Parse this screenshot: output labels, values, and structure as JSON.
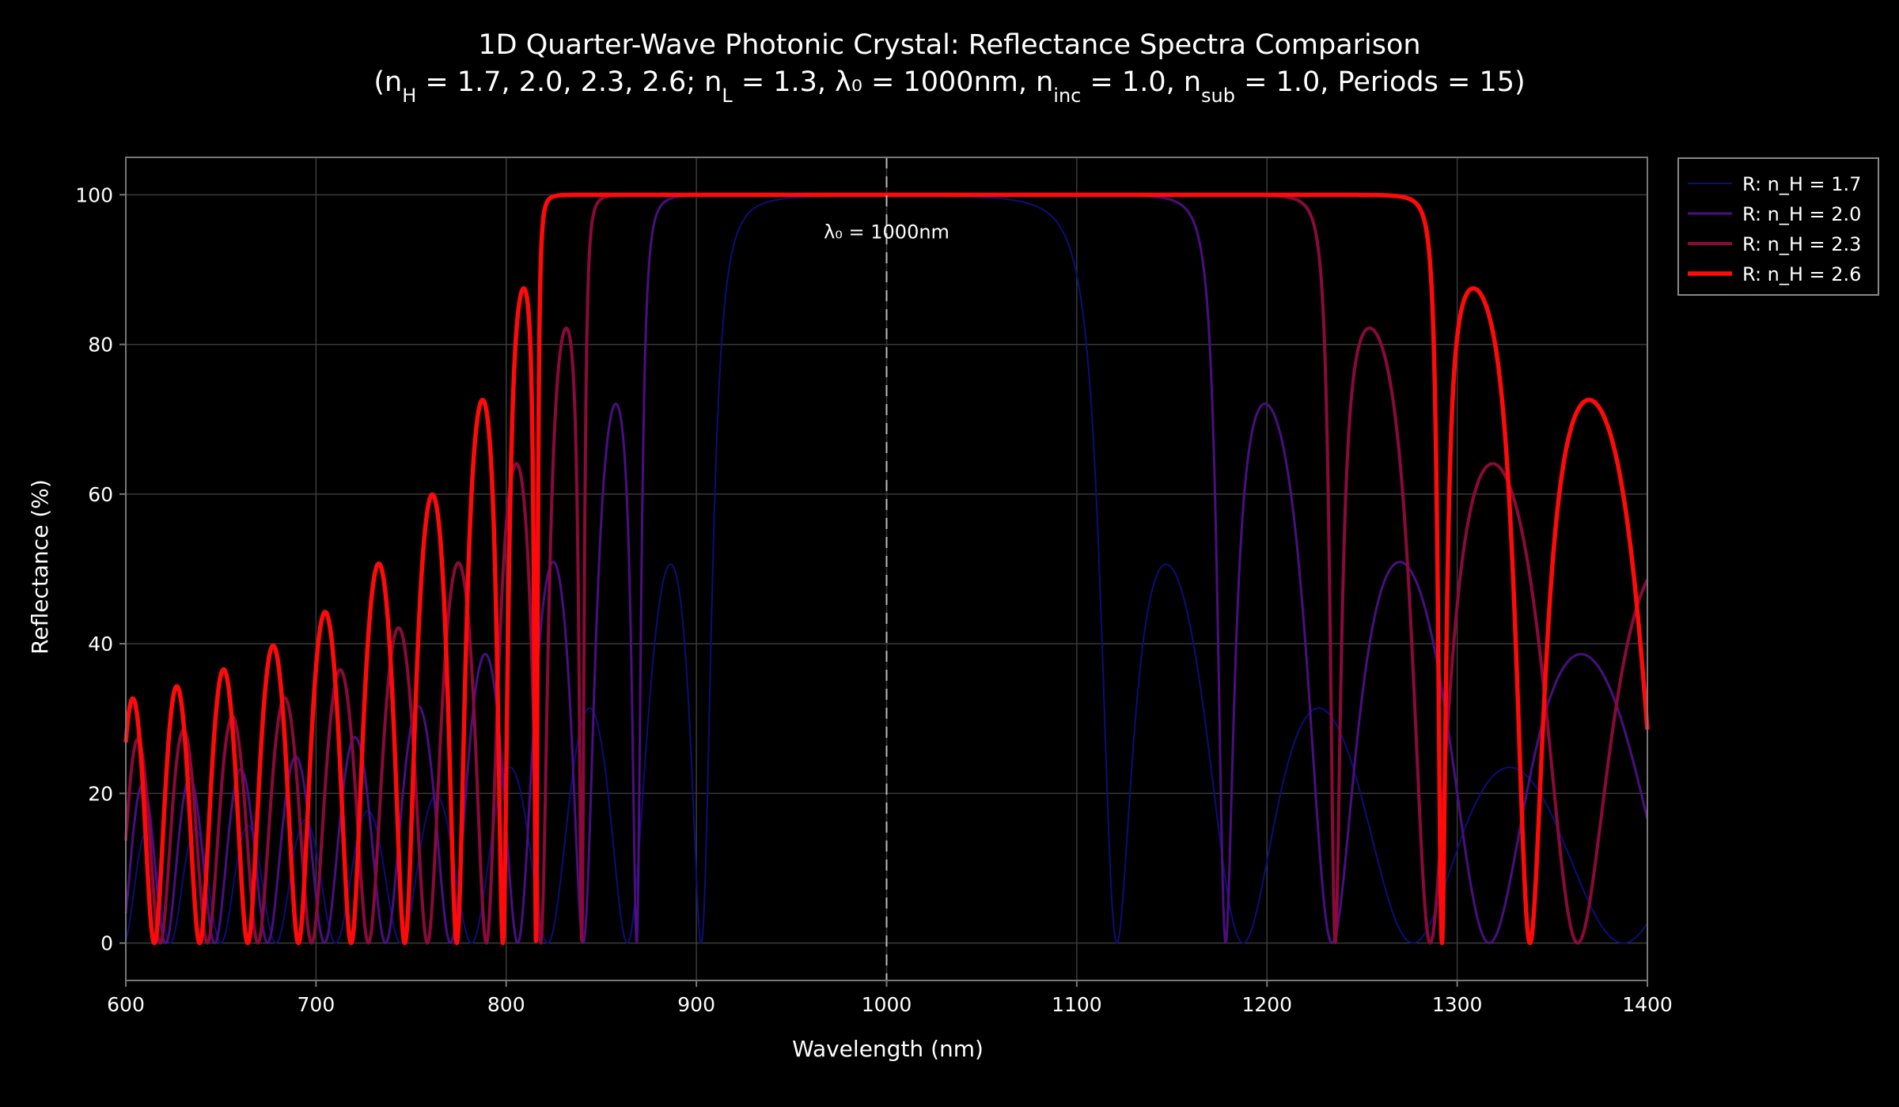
{
  "chart_data": {
    "type": "line",
    "title_line1": "1D Quarter-Wave Photonic Crystal: Reflectance Spectra Comparison",
    "title_line2_parts": [
      {
        "t": "(n",
        "sub": false
      },
      {
        "t": "H",
        "sub": true
      },
      {
        "t": " = 1.7, 2.0, 2.3, 2.6; n",
        "sub": false
      },
      {
        "t": "L",
        "sub": true
      },
      {
        "t": " = 1.3, λ₀ = 1000nm, n",
        "sub": false
      },
      {
        "t": "inc",
        "sub": true
      },
      {
        "t": " = 1.0, n",
        "sub": false
      },
      {
        "t": "sub",
        "sub": true
      },
      {
        "t": " = 1.0, Periods = 15)",
        "sub": false
      }
    ],
    "xlabel": "Wavelength (nm)",
    "ylabel": "Reflectance (%)",
    "xlim": [
      600,
      1400
    ],
    "ylim": [
      -5,
      105
    ],
    "xticks": [
      600,
      700,
      800,
      900,
      1000,
      1100,
      1200,
      1300,
      1400
    ],
    "yticks": [
      0,
      20,
      40,
      60,
      80,
      100
    ],
    "grid": true,
    "legend_position": "top-right",
    "annotation": {
      "text": "λ₀ = 1000nm",
      "x": 1000,
      "y": 95
    },
    "reference_line": {
      "x": 1000,
      "style": "dashed"
    },
    "model": {
      "n_L": 1.3,
      "lambda0_nm": 1000,
      "n_inc": 1.0,
      "n_sub": 1.0,
      "periods": 15
    },
    "series": [
      {
        "name": "R: n_H = 1.7",
        "n_H": 1.7,
        "color": "#0d0d7a"
      },
      {
        "name": "R: n_H = 2.0",
        "n_H": 2.0,
        "color": "#4a0f80"
      },
      {
        "name": "R: n_H = 2.3",
        "n_H": 2.3,
        "color": "#8a0a3a"
      },
      {
        "name": "R: n_H = 2.6",
        "n_H": 2.6,
        "color": "#ff0a0a"
      }
    ]
  }
}
